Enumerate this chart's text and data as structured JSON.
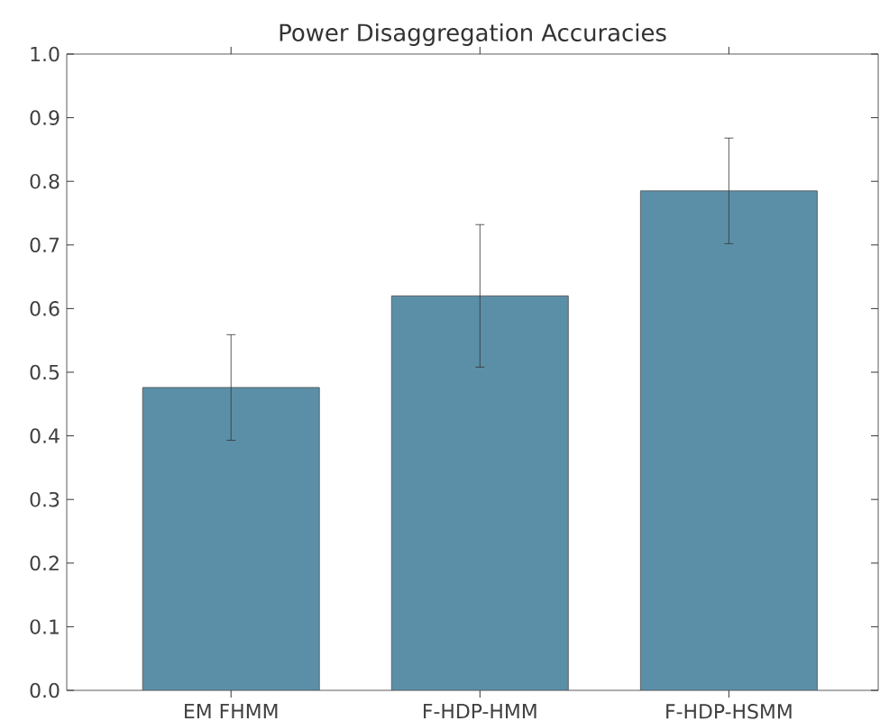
{
  "chart_data": {
    "type": "bar",
    "title": "Power Disaggregation Accuracies",
    "categories": [
      "EM FHMM",
      "F-HDP-HMM",
      "F-HDP-HSMM"
    ],
    "values": [
      0.476,
      0.62,
      0.785
    ],
    "errors": [
      0.083,
      0.112,
      0.083
    ],
    "color": "#5b8fa8",
    "ylim": [
      0,
      1
    ],
    "yticks": [
      {
        "value": 0,
        "label": "0.0"
      },
      0.1,
      0.2,
      0.3,
      0.4,
      0.5,
      0.6,
      0.7,
      0.8,
      0.9,
      {
        "value": 1,
        "label": "1.0"
      }
    ]
  }
}
